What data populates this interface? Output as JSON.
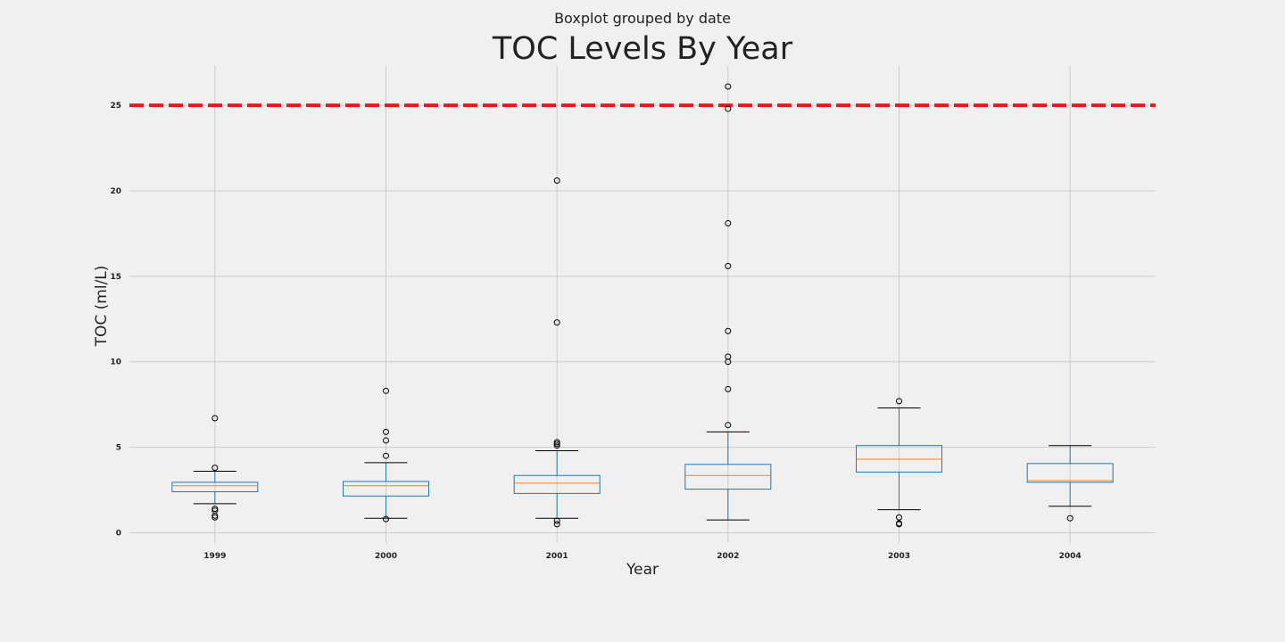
{
  "chart_data": {
    "type": "boxplot",
    "suptitle": "Boxplot grouped by date",
    "title": "TOC Levels By Year",
    "xlabel": "Year",
    "ylabel": "TOC (ml/L)",
    "ylim": [
      -0.6,
      27.3
    ],
    "yticks": [
      0,
      5,
      10,
      15,
      20,
      25
    ],
    "grid": true,
    "reference_line": {
      "value": 25,
      "style": "dashed",
      "color": "#e31a1c"
    },
    "colors": {
      "box": "#1f77b4",
      "median": "#ff7f0e",
      "whisker": "#1f77b4",
      "cap": "#000000",
      "flier": "#000000",
      "grid": "#cbcbcb"
    },
    "categories": [
      "1999",
      "2000",
      "2001",
      "2002",
      "2003",
      "2004"
    ],
    "boxes": [
      {
        "label": "1999",
        "whislo": 1.7,
        "q1": 2.4,
        "med": 2.75,
        "q3": 2.95,
        "whishi": 3.6,
        "fliers": [
          6.7,
          3.8,
          1.4,
          1.3,
          1.0,
          0.9
        ]
      },
      {
        "label": "2000",
        "whislo": 0.85,
        "q1": 2.15,
        "med": 2.75,
        "q3": 3.0,
        "whishi": 4.1,
        "fliers": [
          8.3,
          5.9,
          5.4,
          4.5,
          0.8
        ]
      },
      {
        "label": "2001",
        "whislo": 0.85,
        "q1": 2.3,
        "med": 2.9,
        "q3": 3.35,
        "whishi": 4.8,
        "fliers": [
          20.6,
          12.3,
          5.3,
          5.2,
          5.1,
          0.7,
          0.5
        ]
      },
      {
        "label": "2002",
        "whislo": 0.75,
        "q1": 2.55,
        "med": 3.35,
        "q3": 4.0,
        "whishi": 5.9,
        "fliers": [
          26.1,
          24.8,
          18.1,
          15.6,
          11.8,
          10.3,
          10.0,
          8.4,
          6.3
        ]
      },
      {
        "label": "2003",
        "whislo": 1.35,
        "q1": 3.55,
        "med": 4.3,
        "q3": 5.1,
        "whishi": 7.3,
        "fliers": [
          7.7,
          0.9,
          0.55,
          0.5
        ]
      },
      {
        "label": "2004",
        "whislo": 1.55,
        "q1": 2.95,
        "med": 3.05,
        "q3": 4.05,
        "whishi": 5.1,
        "fliers": [
          0.85
        ]
      }
    ]
  }
}
